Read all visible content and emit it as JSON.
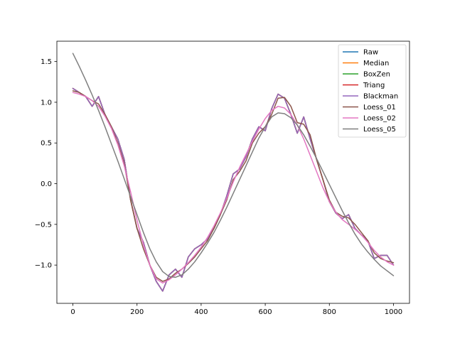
{
  "chart_data": {
    "type": "line",
    "title": "",
    "xlabel": "",
    "ylabel": "",
    "xlim": [
      -50,
      1050
    ],
    "ylim": [
      -1.47,
      1.75
    ],
    "xticks": [
      0,
      200,
      400,
      600,
      800,
      1000
    ],
    "yticks": [
      -1.0,
      -0.5,
      0.0,
      0.5,
      1.0,
      1.5
    ],
    "xtick_labels": [
      "0",
      "200",
      "400",
      "600",
      "800",
      "1000"
    ],
    "ytick_labels": [
      "−1.0",
      "−0.5",
      "0.0",
      "0.5",
      "1.0",
      "1.5"
    ],
    "grid": false,
    "legend": "top-right",
    "x": [
      0,
      20,
      40,
      60,
      80,
      100,
      120,
      140,
      160,
      180,
      200,
      220,
      240,
      260,
      280,
      300,
      320,
      340,
      360,
      380,
      400,
      420,
      440,
      460,
      480,
      500,
      520,
      540,
      560,
      580,
      600,
      620,
      640,
      660,
      680,
      700,
      720,
      740,
      760,
      780,
      800,
      820,
      840,
      860,
      880,
      900,
      920,
      940,
      960,
      980,
      1000
    ],
    "series": [
      {
        "name": "Raw",
        "color": "#1f77b4",
        "values": [
          1.17,
          1.12,
          1.07,
          0.95,
          1.07,
          0.85,
          0.7,
          0.55,
          0.3,
          -0.2,
          -0.55,
          -0.72,
          -1.0,
          -1.2,
          -1.32,
          -1.12,
          -1.05,
          -1.15,
          -0.9,
          -0.8,
          -0.75,
          -0.68,
          -0.55,
          -0.38,
          -0.15,
          0.12,
          0.18,
          0.33,
          0.55,
          0.7,
          0.65,
          0.92,
          1.1,
          1.05,
          0.85,
          0.62,
          0.82,
          0.55,
          0.3,
          0.05,
          -0.22,
          -0.36,
          -0.43,
          -0.38,
          -0.55,
          -0.63,
          -0.7,
          -0.92,
          -0.88,
          -0.88,
          -1.0
        ]
      },
      {
        "name": "Median",
        "color": "#ff7f0e",
        "values": [
          1.17,
          1.12,
          1.07,
          0.95,
          1.07,
          0.85,
          0.7,
          0.55,
          0.3,
          -0.2,
          -0.55,
          -0.72,
          -1.0,
          -1.2,
          -1.32,
          -1.12,
          -1.05,
          -1.15,
          -0.9,
          -0.8,
          -0.75,
          -0.68,
          -0.55,
          -0.38,
          -0.15,
          0.12,
          0.18,
          0.33,
          0.55,
          0.7,
          0.65,
          0.92,
          1.1,
          1.05,
          0.85,
          0.62,
          0.82,
          0.55,
          0.3,
          0.05,
          -0.22,
          -0.36,
          -0.43,
          -0.38,
          -0.55,
          -0.63,
          -0.7,
          -0.92,
          -0.88,
          -0.88,
          -1.0
        ]
      },
      {
        "name": "BoxZen",
        "color": "#2ca02c",
        "values": [
          1.17,
          1.12,
          1.07,
          0.95,
          1.07,
          0.85,
          0.7,
          0.55,
          0.3,
          -0.2,
          -0.55,
          -0.72,
          -1.0,
          -1.2,
          -1.32,
          -1.12,
          -1.05,
          -1.15,
          -0.9,
          -0.8,
          -0.75,
          -0.68,
          -0.55,
          -0.38,
          -0.15,
          0.12,
          0.18,
          0.33,
          0.55,
          0.7,
          0.65,
          0.92,
          1.1,
          1.05,
          0.85,
          0.62,
          0.82,
          0.55,
          0.3,
          0.05,
          -0.22,
          -0.36,
          -0.43,
          -0.38,
          -0.55,
          -0.63,
          -0.7,
          -0.92,
          -0.88,
          -0.88,
          -1.0
        ]
      },
      {
        "name": "Triang",
        "color": "#d62728",
        "values": [
          1.17,
          1.12,
          1.07,
          0.95,
          1.07,
          0.85,
          0.7,
          0.55,
          0.3,
          -0.2,
          -0.55,
          -0.72,
          -1.0,
          -1.2,
          -1.32,
          -1.12,
          -1.05,
          -1.15,
          -0.9,
          -0.8,
          -0.75,
          -0.68,
          -0.55,
          -0.38,
          -0.15,
          0.12,
          0.18,
          0.33,
          0.55,
          0.7,
          0.65,
          0.92,
          1.1,
          1.05,
          0.85,
          0.62,
          0.82,
          0.55,
          0.3,
          0.05,
          -0.22,
          -0.36,
          -0.43,
          -0.38,
          -0.55,
          -0.63,
          -0.7,
          -0.92,
          -0.88,
          -0.88,
          -1.0
        ]
      },
      {
        "name": "Blackman",
        "color": "#9467bd",
        "values": [
          1.17,
          1.12,
          1.07,
          0.95,
          1.07,
          0.85,
          0.7,
          0.55,
          0.3,
          -0.2,
          -0.55,
          -0.72,
          -1.0,
          -1.2,
          -1.32,
          -1.12,
          -1.05,
          -1.15,
          -0.9,
          -0.8,
          -0.75,
          -0.68,
          -0.55,
          -0.38,
          -0.15,
          0.12,
          0.18,
          0.33,
          0.55,
          0.7,
          0.65,
          0.92,
          1.1,
          1.05,
          0.85,
          0.62,
          0.82,
          0.55,
          0.3,
          0.05,
          -0.22,
          -0.36,
          -0.43,
          -0.38,
          -0.55,
          -0.63,
          -0.7,
          -0.92,
          -0.88,
          -0.88,
          -1.0
        ]
      },
      {
        "name": "Loess_01",
        "color": "#8c564b",
        "values": [
          1.14,
          1.12,
          1.07,
          1.02,
          0.98,
          0.85,
          0.7,
          0.5,
          0.25,
          -0.2,
          -0.55,
          -0.8,
          -1.0,
          -1.15,
          -1.2,
          -1.17,
          -1.1,
          -1.05,
          -0.98,
          -0.9,
          -0.8,
          -0.7,
          -0.55,
          -0.38,
          -0.2,
          0.05,
          0.15,
          0.28,
          0.5,
          0.62,
          0.7,
          0.85,
          1.05,
          1.06,
          0.95,
          0.75,
          0.73,
          0.6,
          0.3,
          0.05,
          -0.2,
          -0.35,
          -0.4,
          -0.42,
          -0.5,
          -0.6,
          -0.7,
          -0.85,
          -0.92,
          -0.95,
          -0.97
        ]
      },
      {
        "name": "Loess_02",
        "color": "#e377c2",
        "values": [
          1.12,
          1.1,
          1.07,
          1.02,
          0.95,
          0.83,
          0.68,
          0.48,
          0.22,
          -0.1,
          -0.45,
          -0.75,
          -1.0,
          -1.17,
          -1.22,
          -1.18,
          -1.12,
          -1.05,
          -0.97,
          -0.88,
          -0.78,
          -0.66,
          -0.52,
          -0.36,
          -0.18,
          0.02,
          0.2,
          0.36,
          0.52,
          0.67,
          0.8,
          0.9,
          0.95,
          0.93,
          0.85,
          0.72,
          0.55,
          0.35,
          0.15,
          -0.05,
          -0.22,
          -0.35,
          -0.44,
          -0.5,
          -0.56,
          -0.63,
          -0.72,
          -0.82,
          -0.9,
          -0.96,
          -1.0
        ]
      },
      {
        "name": "Loess_05",
        "color": "#7f7f7f",
        "values": [
          1.6,
          1.44,
          1.27,
          1.09,
          0.9,
          0.7,
          0.49,
          0.28,
          0.06,
          -0.16,
          -0.38,
          -0.6,
          -0.8,
          -0.96,
          -1.08,
          -1.14,
          -1.15,
          -1.12,
          -1.05,
          -0.96,
          -0.85,
          -0.73,
          -0.6,
          -0.45,
          -0.29,
          -0.12,
          0.05,
          0.22,
          0.39,
          0.56,
          0.7,
          0.82,
          0.87,
          0.86,
          0.81,
          0.72,
          0.6,
          0.46,
          0.31,
          0.15,
          -0.01,
          -0.17,
          -0.33,
          -0.48,
          -0.62,
          -0.74,
          -0.84,
          -0.93,
          -1.01,
          -1.07,
          -1.13
        ]
      }
    ]
  }
}
